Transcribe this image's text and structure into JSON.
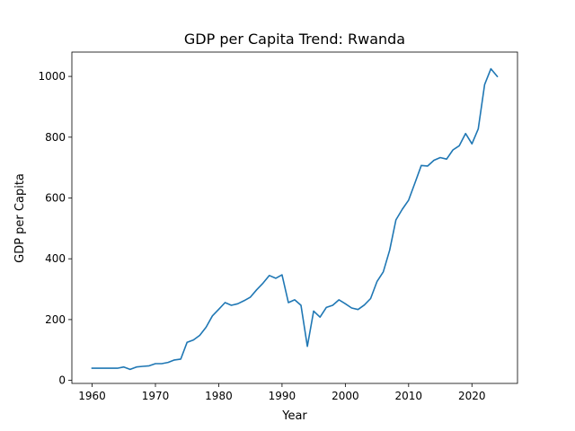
{
  "chart_data": {
    "type": "line",
    "title": "GDP per Capita Trend: Rwanda",
    "xlabel": "Year",
    "ylabel": "GDP per Capita",
    "xlim": [
      1956.8,
      2027.2
    ],
    "ylim": [
      -10,
      1080
    ],
    "xticks": [
      1960,
      1970,
      1980,
      1990,
      2000,
      2010,
      2020
    ],
    "yticks": [
      0,
      200,
      400,
      600,
      800,
      1000
    ],
    "grid": false,
    "legend": "none",
    "series": [
      {
        "color": "#1f77b4",
        "x": [
          1960,
          1961,
          1962,
          1963,
          1964,
          1965,
          1966,
          1967,
          1968,
          1969,
          1970,
          1971,
          1972,
          1973,
          1974,
          1975,
          1976,
          1977,
          1978,
          1979,
          1980,
          1981,
          1982,
          1983,
          1984,
          1985,
          1986,
          1987,
          1988,
          1989,
          1990,
          1991,
          1992,
          1993,
          1994,
          1995,
          1996,
          1997,
          1998,
          1999,
          2000,
          2001,
          2002,
          2003,
          2004,
          2005,
          2006,
          2007,
          2008,
          2009,
          2010,
          2011,
          2012,
          2013,
          2014,
          2015,
          2016,
          2017,
          2018,
          2019,
          2020,
          2021,
          2022,
          2023,
          2024
        ],
        "y": [
          40,
          40,
          40,
          40,
          40,
          44,
          36,
          44,
          46,
          48,
          55,
          55,
          59,
          67,
          70,
          125,
          133,
          148,
          175,
          212,
          234,
          256,
          247,
          252,
          262,
          274,
          298,
          320,
          345,
          336,
          347,
          256,
          265,
          247,
          112,
          228,
          208,
          240,
          247,
          265,
          252,
          238,
          233,
          248,
          269,
          325,
          357,
          428,
          528,
          563,
          593,
          650,
          707,
          705,
          724,
          733,
          728,
          758,
          772,
          812,
          778,
          827,
          973,
          1025,
          1000
        ]
      }
    ]
  }
}
